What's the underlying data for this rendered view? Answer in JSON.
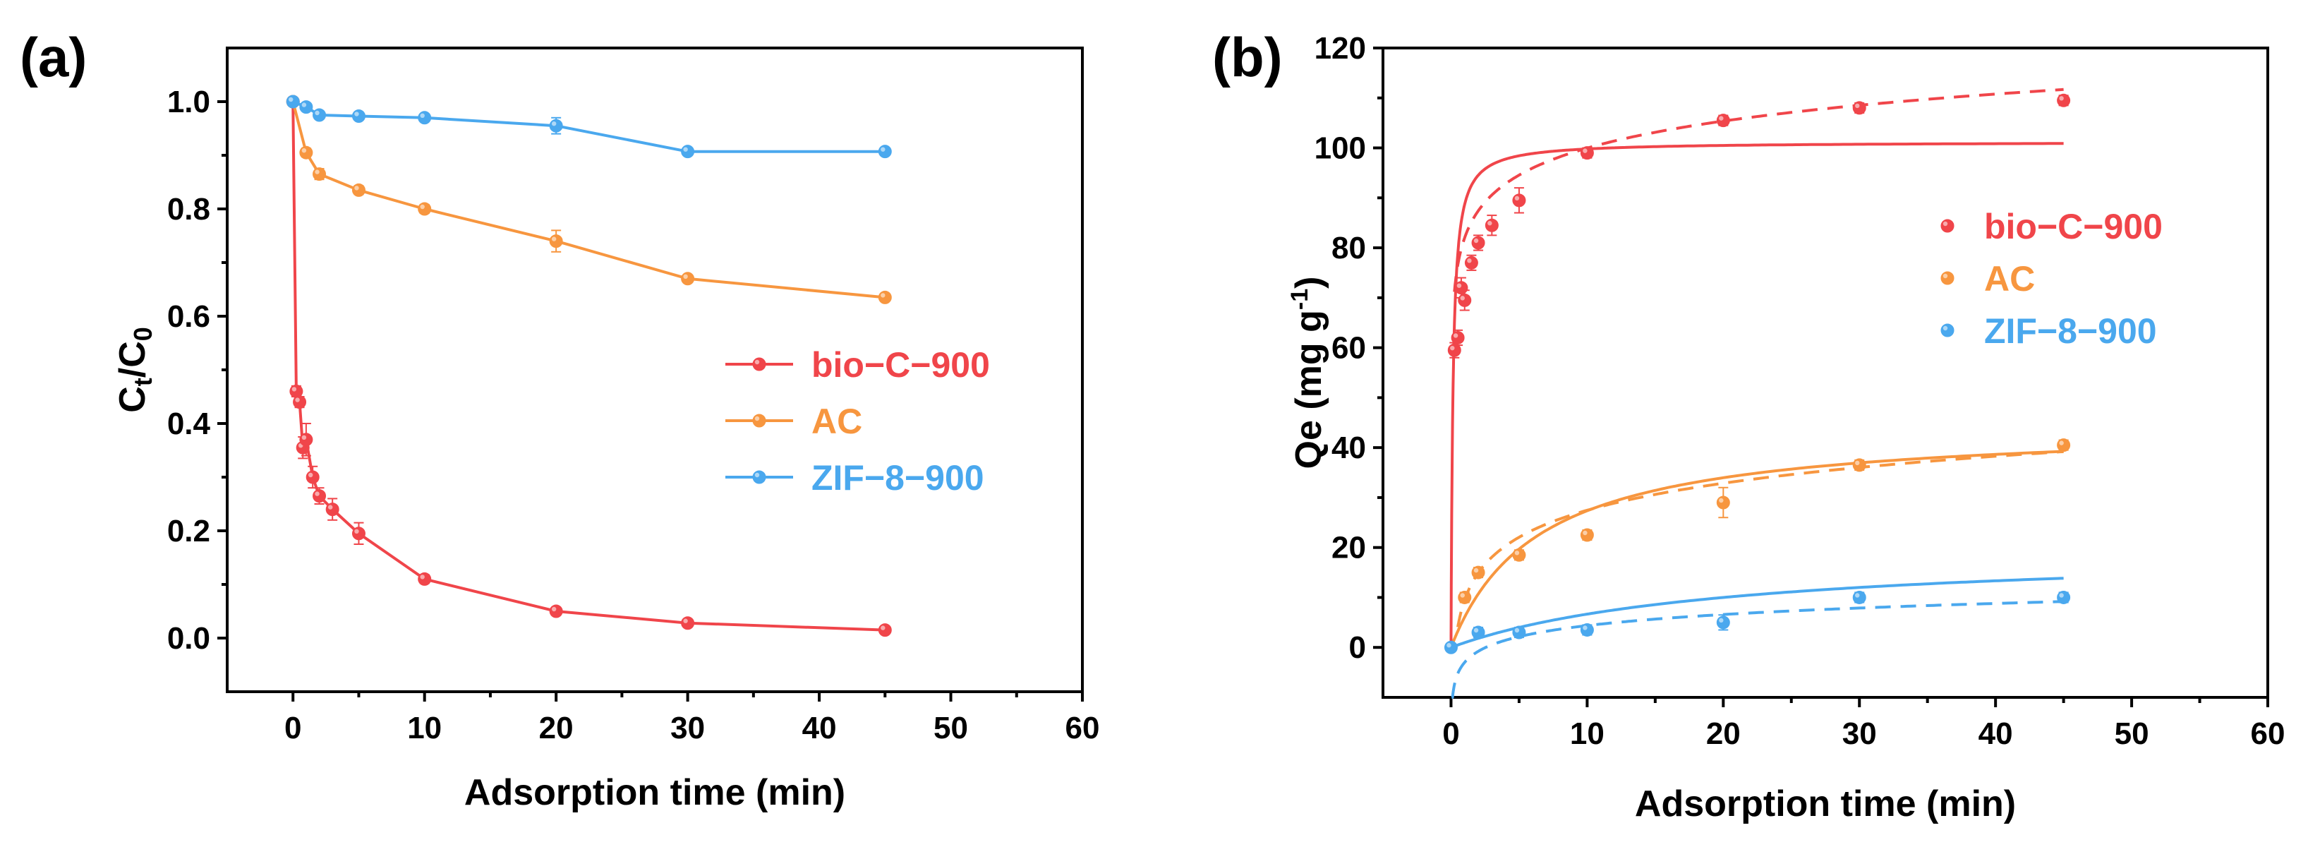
{
  "chart_data": [
    {
      "panel": "(a)",
      "type": "line",
      "xlabel": "Adsorption time (min)",
      "ylabel": {
        "main": "C",
        "sub1": "t",
        "slash": "/C",
        "sub2": "0"
      },
      "xlim": [
        -5,
        60
      ],
      "ylim": [
        -0.1,
        1.1
      ],
      "xticks": [
        0,
        10,
        20,
        30,
        40,
        50,
        60
      ],
      "yticks": [
        0.0,
        0.2,
        0.4,
        0.6,
        0.8,
        1.0
      ],
      "legend_position": "center-right",
      "series": [
        {
          "name": "bio−C−900",
          "color": "#f0454a",
          "x": [
            0,
            0.25,
            0.5,
            0.75,
            1,
            1.5,
            2,
            3,
            5,
            10,
            20,
            30,
            45
          ],
          "y": [
            1.0,
            0.46,
            0.44,
            0.355,
            0.37,
            0.3,
            0.265,
            0.24,
            0.195,
            0.11,
            0.05,
            0.028,
            0.015
          ],
          "err": [
            0,
            0.01,
            0.01,
            0.02,
            0.03,
            0.02,
            0.015,
            0.02,
            0.02,
            0.008,
            0.006,
            0.004,
            0.004
          ]
        },
        {
          "name": "AC",
          "color": "#f7963f",
          "x": [
            0,
            1,
            2,
            5,
            10,
            20,
            30,
            45
          ],
          "y": [
            1.0,
            0.905,
            0.865,
            0.835,
            0.8,
            0.74,
            0.67,
            0.635
          ],
          "err": [
            0,
            0.008,
            0.01,
            0.008,
            0.008,
            0.02,
            0.006,
            0.006
          ]
        },
        {
          "name": "ZIF−8−900",
          "color": "#4aa8ee",
          "x": [
            0,
            1,
            2,
            5,
            10,
            20,
            30,
            45
          ],
          "y": [
            1.0,
            0.99,
            0.975,
            0.973,
            0.97,
            0.955,
            0.907,
            0.907
          ],
          "err": [
            0,
            0.004,
            0.004,
            0.004,
            0.006,
            0.015,
            0.004,
            0.004
          ]
        }
      ]
    },
    {
      "panel": "(b)",
      "type": "scatter",
      "xlabel": "Adsorption time (min)",
      "ylabel": {
        "main": "Qe (mg g",
        "sup": "-1",
        "close": ")"
      },
      "xlim": [
        -5,
        60
      ],
      "ylim": [
        -10,
        120
      ],
      "xticks": [
        0,
        10,
        20,
        30,
        40,
        50,
        60
      ],
      "yticks": [
        0,
        20,
        40,
        60,
        80,
        100,
        120
      ],
      "legend_position": "upper-right",
      "series": [
        {
          "name": "bio−C−900",
          "color": "#f0454a",
          "x": [
            0.25,
            0.5,
            0.75,
            1,
            1.5,
            2,
            3,
            5,
            10,
            20,
            30,
            45
          ],
          "y": [
            59.5,
            62,
            72,
            69.5,
            77,
            81,
            84.5,
            89.5,
            99,
            105.5,
            108,
            109.5
          ],
          "err": [
            1.5,
            1.5,
            2,
            2,
            1.5,
            1.5,
            2,
            2.5,
            1,
            1,
            1,
            1
          ],
          "fit_solid": {
            "qe": 101.2,
            "k2": 0.07,
            "x_end": 45
          },
          "fit_dashed": {
            "a": 82,
            "b": 7.8,
            "x_start": 0.25,
            "x_end": 45
          }
        },
        {
          "name": "AC",
          "color": "#f7963f",
          "x": [
            1,
            2,
            5,
            10,
            20,
            30,
            45
          ],
          "y": [
            10,
            15,
            18.5,
            22.5,
            29,
            36.5,
            40.5
          ],
          "err": [
            1,
            1,
            1,
            1,
            3,
            1,
            1
          ],
          "fit_solid": {
            "qe": 44.8,
            "k2": 0.0035,
            "x_end": 45
          },
          "fit_dashed": {
            "a": 9.5,
            "b": 7.8,
            "x_start": 0.5,
            "x_end": 45
          }
        },
        {
          "name": "ZIF−8−900",
          "color": "#4aa8ee",
          "x": [
            0,
            2,
            5,
            10,
            20,
            30,
            45
          ],
          "y": [
            0,
            3,
            3,
            3.5,
            5,
            10,
            10
          ],
          "err": [
            0,
            1,
            1,
            1,
            1.5,
            1,
            1
          ],
          "fit_solid": {
            "qe": 20,
            "k2": 0.0025,
            "x_end": 45
          },
          "fit_dashed": {
            "a": -3.0,
            "b": 3.2,
            "x_start": 0.05,
            "x_end": 45
          }
        }
      ]
    }
  ]
}
